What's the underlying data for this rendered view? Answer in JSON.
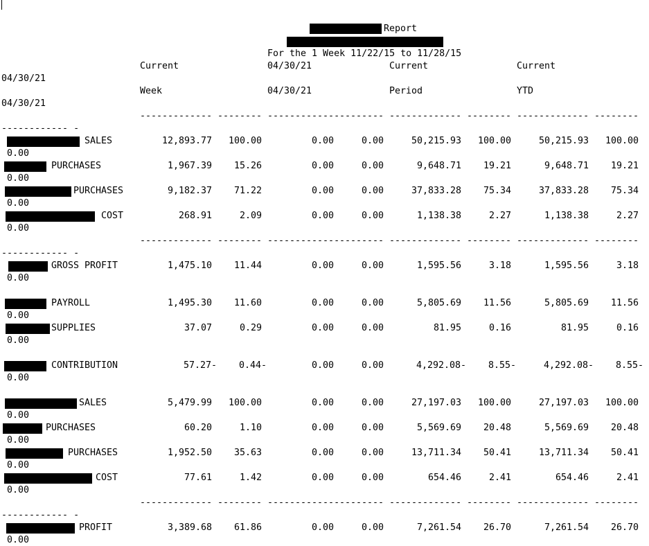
{
  "header": {
    "report_label": "Report",
    "period_line": "For the 1 Week 11/22/15 to 11/28/15"
  },
  "columns": {
    "row1": {
      "c1": "Current",
      "c2": "04/30/21",
      "c3": "Current",
      "c4": "Current"
    },
    "row1_wrap": "04/30/21",
    "row2": {
      "c1": "Week",
      "c2": "04/30/21",
      "c3": "Period",
      "c4": "YTD"
    },
    "row2_wrap": "04/30/21"
  },
  "separators": {
    "amount": "-------------",
    "pct": "--------",
    "wrap": "------------ -"
  },
  "rows": [
    {
      "label": "SALES",
      "cw": "12,893.77",
      "cwp": "100.00",
      "py": "0.00",
      "pyp": "0.00",
      "per": "50,215.93",
      "perp": "100.00",
      "ytd": "50,215.93",
      "ytdp": "100.00",
      "wrap": "0.00"
    },
    {
      "label": "PURCHASES",
      "cw": "1,967.39",
      "cwp": "15.26",
      "py": "0.00",
      "pyp": "0.00",
      "per": "9,648.71",
      "perp": "19.21",
      "ytd": "9,648.71",
      "ytdp": "19.21",
      "wrap": "0.00"
    },
    {
      "label": "PURCHASES",
      "cw": "9,182.37",
      "cwp": "71.22",
      "py": "0.00",
      "pyp": "0.00",
      "per": "37,833.28",
      "perp": "75.34",
      "ytd": "37,833.28",
      "ytdp": "75.34",
      "wrap": "0.00"
    },
    {
      "label": "COST",
      "cw": "268.91",
      "cwp": "2.09",
      "py": "0.00",
      "pyp": "0.00",
      "per": "1,138.38",
      "perp": "2.27",
      "ytd": "1,138.38",
      "ytdp": "2.27",
      "wrap": "0.00"
    },
    {
      "label": "GROSS PROFIT",
      "cw": "1,475.10",
      "cwp": "11.44",
      "py": "0.00",
      "pyp": "0.00",
      "per": "1,595.56",
      "perp": "3.18",
      "ytd": "1,595.56",
      "ytdp": "3.18",
      "wrap": "0.00"
    },
    {
      "label": "PAYROLL",
      "cw": "1,495.30",
      "cwp": "11.60",
      "py": "0.00",
      "pyp": "0.00",
      "per": "5,805.69",
      "perp": "11.56",
      "ytd": "5,805.69",
      "ytdp": "11.56",
      "wrap": "0.00"
    },
    {
      "label": "SUPPLIES",
      "cw": "37.07",
      "cwp": "0.29",
      "py": "0.00",
      "pyp": "0.00",
      "per": "81.95",
      "perp": "0.16",
      "ytd": "81.95",
      "ytdp": "0.16",
      "wrap": "0.00"
    },
    {
      "label": "CONTRIBUTION",
      "cw": "57.27-",
      "cwp": "0.44-",
      "py": "0.00",
      "pyp": "0.00",
      "per": "4,292.08-",
      "perp": "8.55-",
      "ytd": "4,292.08-",
      "ytdp": "8.55-",
      "wrap": "0.00"
    },
    {
      "label": "SALES",
      "cw": "5,479.99",
      "cwp": "100.00",
      "py": "0.00",
      "pyp": "0.00",
      "per": "27,197.03",
      "perp": "100.00",
      "ytd": "27,197.03",
      "ytdp": "100.00",
      "wrap": "0.00"
    },
    {
      "label": "PURCHASES",
      "cw": "60.20",
      "cwp": "1.10",
      "py": "0.00",
      "pyp": "0.00",
      "per": "5,569.69",
      "perp": "20.48",
      "ytd": "5,569.69",
      "ytdp": "20.48",
      "wrap": "0.00"
    },
    {
      "label": "PURCHASES",
      "cw": "1,952.50",
      "cwp": "35.63",
      "py": "0.00",
      "pyp": "0.00",
      "per": "13,711.34",
      "perp": "50.41",
      "ytd": "13,711.34",
      "ytdp": "50.41",
      "wrap": "0.00"
    },
    {
      "label": "COST",
      "cw": "77.61",
      "cwp": "1.42",
      "py": "0.00",
      "pyp": "0.00",
      "per": "654.46",
      "perp": "2.41",
      "ytd": "654.46",
      "ytdp": "2.41",
      "wrap": "0.00"
    },
    {
      "label": "PROFIT",
      "cw": "3,389.68",
      "cwp": "61.86",
      "py": "0.00",
      "pyp": "0.00",
      "per": "7,261.54",
      "perp": "26.70",
      "ytd": "7,261.54",
      "ytdp": "26.70",
      "wrap": "0.00"
    }
  ]
}
